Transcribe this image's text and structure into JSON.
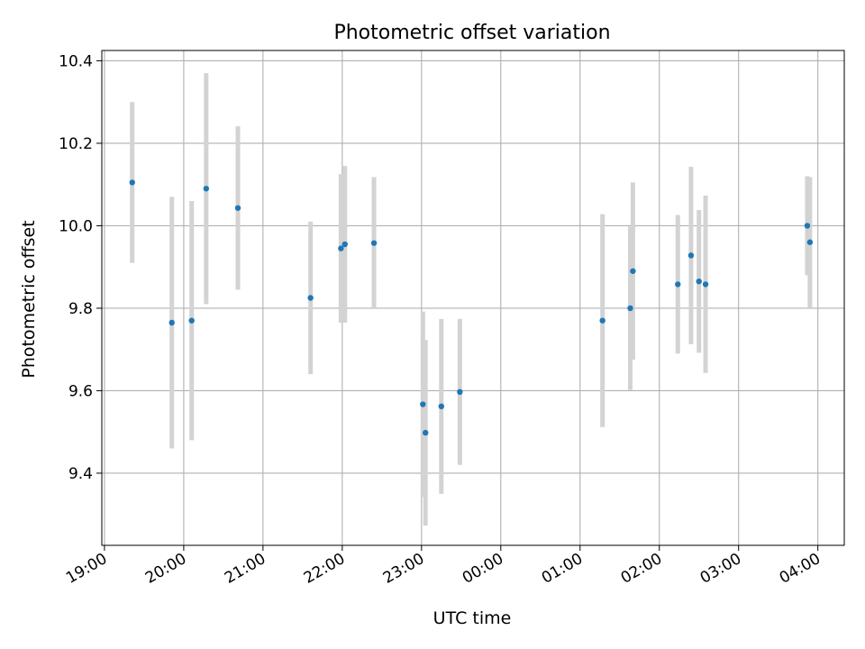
{
  "chart_data": {
    "type": "scatter",
    "title": "Photometric offset variation",
    "xlabel": "UTC time",
    "ylabel": "Photometric offset",
    "grid": true,
    "legend": "none",
    "x_unit": "UTC time (HH:MM)",
    "xlim": [
      "18:58",
      "04:20"
    ],
    "ylim": [
      9.225,
      10.425
    ],
    "x_ticks": [
      "19:00",
      "20:00",
      "21:00",
      "22:00",
      "23:00",
      "00:00",
      "01:00",
      "02:00",
      "03:00",
      "04:00"
    ],
    "y_ticks": [
      "9.4",
      "9.6",
      "9.8",
      "10.0",
      "10.2",
      "10.4"
    ],
    "colors": {
      "point": "#1f77b4",
      "errorbar": "#d3d3d3",
      "grid": "#b0b0b0"
    },
    "series": [
      {
        "points": [
          {
            "x": "19:21",
            "y": 10.105,
            "err": 0.195
          },
          {
            "x": "19:51",
            "y": 9.765,
            "err": 0.305
          },
          {
            "x": "20:06",
            "y": 9.77,
            "err": 0.29
          },
          {
            "x": "20:17",
            "y": 10.09,
            "err": 0.28
          },
          {
            "x": "20:41",
            "y": 10.043,
            "err": 0.198
          },
          {
            "x": "21:36",
            "y": 9.825,
            "err": 0.185
          },
          {
            "x": "21:59",
            "y": 9.945,
            "err": 0.18
          },
          {
            "x": "22:02",
            "y": 9.955,
            "err": 0.19
          },
          {
            "x": "22:24",
            "y": 9.958,
            "err": 0.16
          },
          {
            "x": "23:01",
            "y": 9.567,
            "err": 0.225
          },
          {
            "x": "23:03",
            "y": 9.498,
            "err": 0.225
          },
          {
            "x": "23:15",
            "y": 9.562,
            "err": 0.212
          },
          {
            "x": "23:29",
            "y": 9.597,
            "err": 0.177
          },
          {
            "x": "01:17",
            "y": 9.77,
            "err": 0.258
          },
          {
            "x": "01:38",
            "y": 9.8,
            "err": 0.198
          },
          {
            "x": "01:40",
            "y": 9.89,
            "err": 0.215
          },
          {
            "x": "02:14",
            "y": 9.858,
            "err": 0.168
          },
          {
            "x": "02:24",
            "y": 9.928,
            "err": 0.215
          },
          {
            "x": "02:30",
            "y": 9.865,
            "err": 0.173
          },
          {
            "x": "02:35",
            "y": 9.858,
            "err": 0.215
          },
          {
            "x": "03:52",
            "y": 10.0,
            "err": 0.12
          },
          {
            "x": "03:54",
            "y": 9.96,
            "err": 0.158
          }
        ]
      }
    ]
  }
}
